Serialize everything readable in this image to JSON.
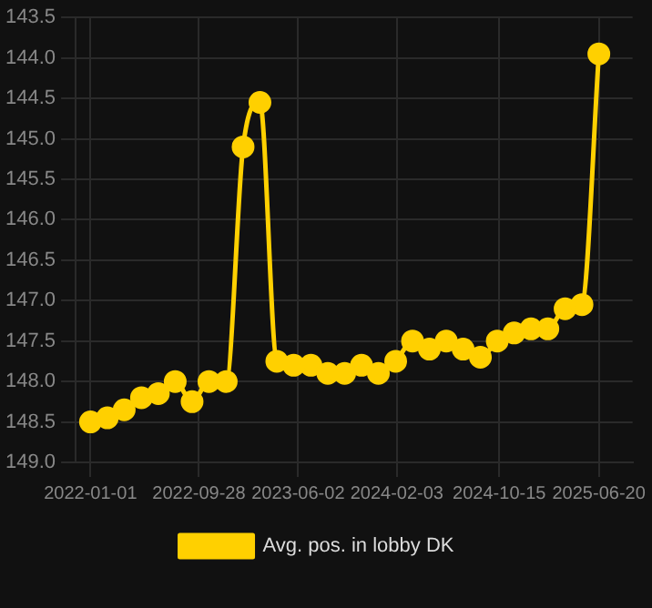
{
  "chart_data": {
    "type": "line",
    "x": [
      "2022-01-01",
      "2022-02-12",
      "2022-03-26",
      "2022-05-08",
      "2022-06-19",
      "2022-07-31",
      "2022-09-11",
      "2022-10-23",
      "2022-12-05",
      "2023-01-16",
      "2023-02-27",
      "2023-04-10",
      "2023-05-22",
      "2023-07-04",
      "2023-08-15",
      "2023-09-26",
      "2023-11-07",
      "2023-12-19",
      "2024-01-31",
      "2024-03-13",
      "2024-04-24",
      "2024-06-05",
      "2024-07-17",
      "2024-08-29",
      "2024-10-10",
      "2024-11-21",
      "2025-01-02",
      "2025-02-13",
      "2025-03-28",
      "2025-05-09",
      "2025-06-20"
    ],
    "series": [
      {
        "name": "Avg. pos. in lobby DK",
        "color": "#ffd000",
        "values": [
          148.5,
          148.45,
          148.35,
          148.2,
          148.15,
          148.0,
          148.25,
          148.0,
          148.0,
          145.1,
          144.55,
          147.75,
          147.8,
          147.8,
          147.9,
          147.9,
          147.8,
          147.9,
          147.75,
          147.5,
          147.6,
          147.5,
          147.6,
          147.7,
          147.5,
          147.4,
          147.35,
          147.35,
          147.1,
          147.05,
          143.95
        ]
      }
    ],
    "xlim": [
      "2021-11-25",
      "2025-09-12"
    ],
    "xticks": [
      "2022-01-01",
      "2022-09-28",
      "2023-06-02",
      "2024-02-03",
      "2024-10-15",
      "2025-06-20"
    ],
    "ylim": [
      149.0,
      143.5
    ],
    "yticks": [
      {
        "value": 143.5,
        "label": "143.5"
      },
      {
        "value": 144.0,
        "label": "144.0"
      },
      {
        "value": 144.5,
        "label": "144.5"
      },
      {
        "value": 145.0,
        "label": "145.0"
      },
      {
        "value": 145.5,
        "label": "145.5"
      },
      {
        "value": 146.0,
        "label": "146.0"
      },
      {
        "value": 146.5,
        "label": "146.5"
      },
      {
        "value": 147.0,
        "label": "147.0"
      },
      {
        "value": 147.5,
        "label": "147.5"
      },
      {
        "value": 148.0,
        "label": "148.0"
      },
      {
        "value": 148.5,
        "label": "148.5"
      },
      {
        "value": 149.0,
        "label": "149.0"
      }
    ],
    "grid": true,
    "legend": "bottom",
    "marker": "circle",
    "line_style": "solid"
  }
}
